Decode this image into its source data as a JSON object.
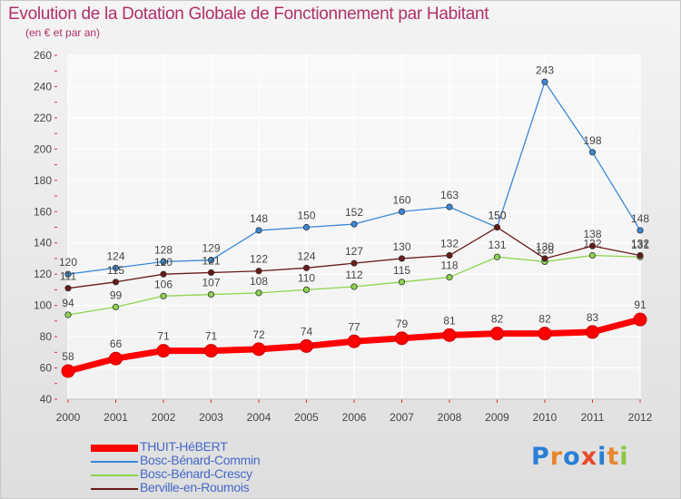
{
  "title": "Evolution de la Dotation Globale de Fonctionnement par Habitant",
  "subtitle": "(en € et par an)",
  "brand": {
    "letters": [
      "P",
      "r",
      "o",
      "x",
      "i",
      "t",
      "i"
    ],
    "colors": [
      "#2a7fd4",
      "#e8862a",
      "#2a7fd4",
      "#e84a2a",
      "#2a7fd4",
      "#e8862a",
      "#8cc63f"
    ]
  },
  "chart_data": {
    "type": "line",
    "title": "Evolution de la Dotation Globale de Fonctionnement par Habitant",
    "subtitle": "(en € et par an)",
    "xlabel": "",
    "ylabel": "",
    "ylim": [
      40,
      260
    ],
    "yticks": [
      40,
      60,
      80,
      100,
      120,
      140,
      160,
      180,
      200,
      220,
      240,
      260
    ],
    "grid": true,
    "x": [
      "2000",
      "2001",
      "2002",
      "2003",
      "2004",
      "2005",
      "2006",
      "2007",
      "2008",
      "2009",
      "2010",
      "2011",
      "2012"
    ],
    "series": [
      {
        "name": "THUIT-HéBERT",
        "color": "#ff0000",
        "values": [
          58,
          66,
          71,
          71,
          72,
          74,
          77,
          79,
          81,
          82,
          82,
          83,
          91
        ]
      },
      {
        "name": "Bosc-Bénard-Commin",
        "color": "#3a88d8",
        "values": [
          120,
          124,
          128,
          129,
          148,
          150,
          152,
          160,
          163,
          150,
          243,
          198,
          148
        ]
      },
      {
        "name": "Bosc-Bénard-Crescy",
        "color": "#8ed34e",
        "values": [
          94,
          99,
          106,
          107,
          108,
          110,
          112,
          115,
          118,
          131,
          128,
          132,
          131
        ]
      },
      {
        "name": "Berville-en-Roumois",
        "color": "#6a1a1a",
        "values": [
          111,
          115,
          120,
          121,
          122,
          124,
          127,
          130,
          132,
          150,
          130,
          138,
          132
        ]
      }
    ]
  }
}
